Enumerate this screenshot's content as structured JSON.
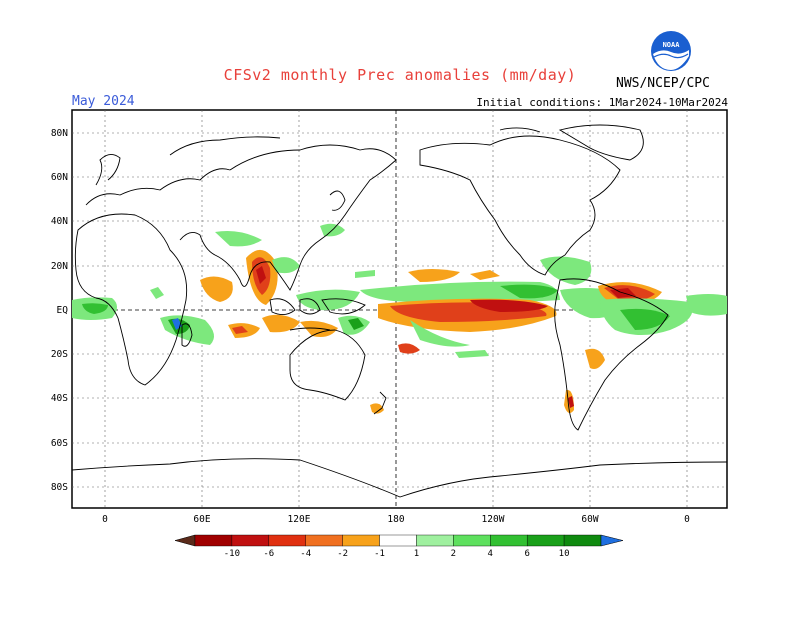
{
  "title": "CFSv2 monthly Prec anomalies (mm/day)",
  "valid_month": "May 2024",
  "initial_conditions": "Initial conditions: 1Mar2024-10Mar2024",
  "agency": "NWS/NCEP/CPC",
  "logo_text": "NOAA",
  "colors": {
    "title": "#e8403a",
    "subtitle": "#3a5bd9",
    "dry_strong": "#a00000",
    "dry_mid": "#e0401a",
    "dry_weak": "#f7a21b",
    "wet_weak": "#7de87d",
    "wet_mid": "#2ea82e",
    "wet_strong": "#118a11",
    "wet_extreme": "#1f6fe0"
  },
  "axes": {
    "y_ticks": [
      "80N",
      "60N",
      "40N",
      "20N",
      "EQ",
      "20S",
      "40S",
      "60S",
      "80S"
    ],
    "x_ticks": [
      "0",
      "60E",
      "120E",
      "180",
      "120W",
      "60W",
      "0"
    ]
  },
  "colorbar": {
    "labels": [
      "-10",
      "-6",
      "-4",
      "-2",
      "-1",
      "1",
      "2",
      "4",
      "6",
      "10"
    ],
    "colors": [
      "#5a2a1a",
      "#a00000",
      "#c01010",
      "#e03010",
      "#f07020",
      "#f7a21b",
      "#ffffff",
      "#9ff09f",
      "#5ee05e",
      "#32c032",
      "#1aa01a",
      "#0f8a0f",
      "#1f6fe0"
    ]
  }
}
